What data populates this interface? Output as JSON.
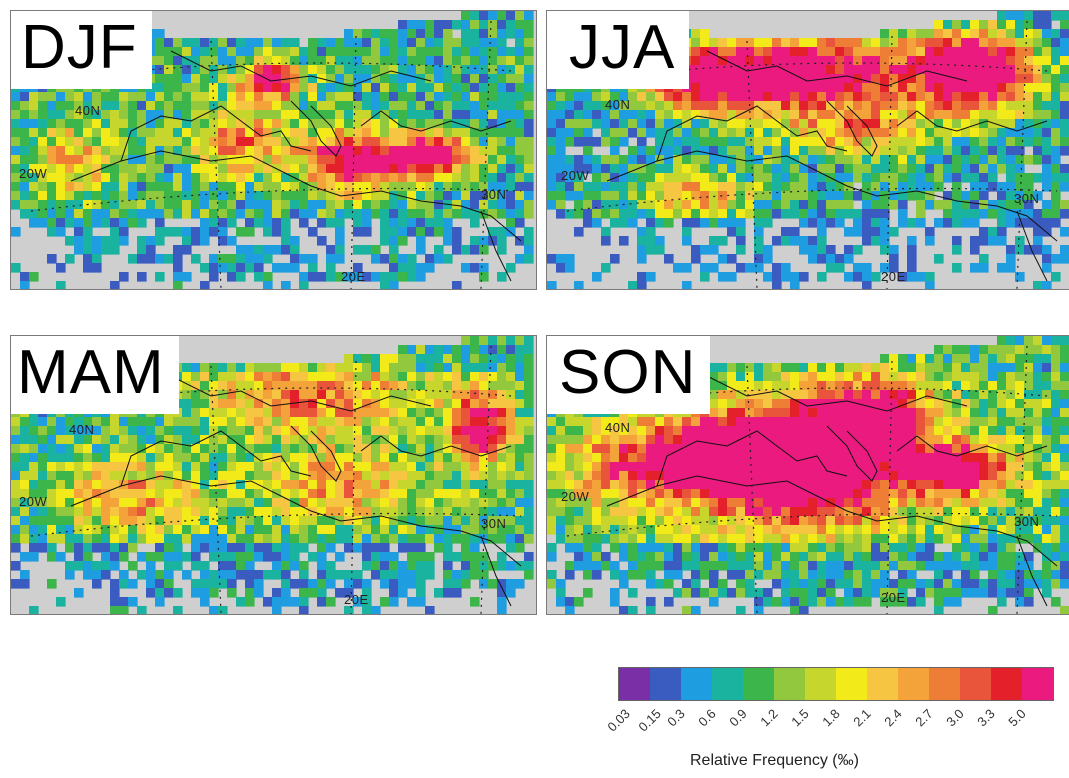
{
  "panels": [
    {
      "label": "DJF",
      "lat40": "40N",
      "lon20w": "20W",
      "lat30": "30N",
      "lon20e": "20E"
    },
    {
      "label": "JJA",
      "lat40": "40N",
      "lon20w": "20W",
      "lat30": "30N",
      "lon20e": "20E"
    },
    {
      "label": "MAM",
      "lat40": "40N",
      "lon20w": "20W",
      "lat30": "30N",
      "lon20e": "20E"
    },
    {
      "label": "SON",
      "lat40": "40N",
      "lon20w": "20W",
      "lat30": "30N",
      "lon20e": "20E"
    }
  ],
  "colorbar": {
    "title": "Relative Frequency (‰)",
    "ticks": [
      "0.03",
      "0.15",
      "0.3",
      "0.6",
      "0.9",
      "1.2",
      "1.5",
      "1.8",
      "2.1",
      "2.4",
      "2.7",
      "3.0",
      "3.3",
      "5.0"
    ],
    "colors": [
      "#7b2fa6",
      "#3a5cc0",
      "#1e9de0",
      "#19b3a0",
      "#3cb54a",
      "#92c83e",
      "#c7d62d",
      "#f3ea1a",
      "#f6c542",
      "#f3a33a",
      "#ee7d35",
      "#e9553a",
      "#e4202a",
      "#ea1a7f"
    ]
  },
  "map_style": {
    "land": "#cfcfcf",
    "frame": "#7a7a7a",
    "coast": "#111111"
  }
}
